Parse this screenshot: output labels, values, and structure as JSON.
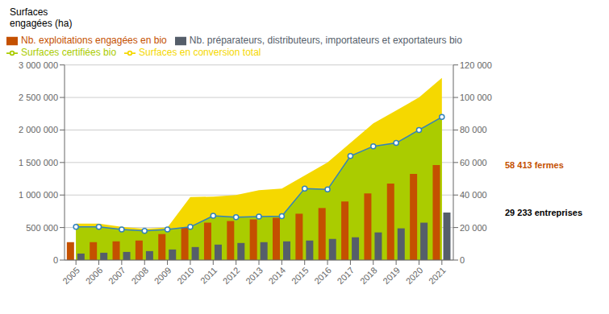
{
  "chart_data": {
    "type": "combo",
    "y_label": "Surfaces\nengagées (ha)",
    "categories": [
      "2005",
      "2006",
      "2007",
      "2008",
      "2009",
      "2010",
      "2011",
      "2012",
      "2013",
      "2014",
      "2015",
      "2016",
      "2017",
      "2018",
      "2019",
      "2020",
      "2021"
    ],
    "series": [
      {
        "name": "Surfaces en conversion total",
        "type": "area",
        "color": "#F5D800",
        "values": [
          560000,
          560000,
          510000,
          480000,
          500000,
          970000,
          975000,
          1000000,
          1075000,
          1100000,
          1300000,
          1500000,
          1800000,
          2100000,
          2300000,
          2500000,
          2800000
        ]
      },
      {
        "name": "Surfaces certifiées bio",
        "type": "area",
        "color": "#AACC00",
        "marker": "circle",
        "values": [
          510000,
          510000,
          470000,
          450000,
          470000,
          510000,
          680000,
          660000,
          670000,
          675000,
          1100000,
          1085000,
          1600000,
          1750000,
          1800000,
          2000000,
          2200000
        ]
      },
      {
        "name": "Nb. exploitations engagées en bio",
        "type": "bar",
        "axis": "y2",
        "color": "#C45000",
        "values": [
          11000,
          11000,
          11500,
          12000,
          16000,
          20000,
          23000,
          24000,
          25000,
          26000,
          28500,
          32000,
          36000,
          41000,
          47000,
          53000,
          58413
        ]
      },
      {
        "name": "Nb. préparateurs, distributeurs, importateurs et exportateurs bio",
        "type": "bar",
        "axis": "y2",
        "color": "#555E6A",
        "values": [
          4000,
          4500,
          5000,
          5500,
          6500,
          8000,
          9500,
          10500,
          11000,
          11500,
          12000,
          13000,
          14000,
          17000,
          19500,
          23000,
          29233
        ]
      }
    ],
    "ylim": [
      0,
      3000000
    ],
    "yticks": [
      0,
      {
        "value": 500000,
        "label": "500 000"
      },
      {
        "value": 1000000,
        "label": "1 000 000"
      },
      {
        "value": 1500000,
        "label": "1 500 000"
      },
      {
        "value": 2000000,
        "label": "2 000 000"
      },
      {
        "value": 2500000,
        "label": "2 500 000"
      },
      {
        "value": 3000000,
        "label": "3 000 000"
      }
    ],
    "y2lim": [
      0,
      120000
    ],
    "y2ticks": [
      0,
      {
        "value": 20000,
        "label": "20 000"
      },
      {
        "value": 40000,
        "label": "40 000"
      },
      {
        "value": 60000,
        "label": "60 000"
      },
      {
        "value": 80000,
        "label": "80 000"
      },
      {
        "value": 100000,
        "label": "100 000"
      },
      {
        "value": 120000,
        "label": "120 000"
      }
    ],
    "grid": true,
    "legend": "upper left",
    "annotations": [
      {
        "text": "58 413 fermes",
        "y": 58413,
        "axis": "y2",
        "color": "#C45000"
      },
      {
        "text": "29 233 entreprises",
        "y": 29233,
        "axis": "y2",
        "color": "#000000"
      }
    ]
  }
}
